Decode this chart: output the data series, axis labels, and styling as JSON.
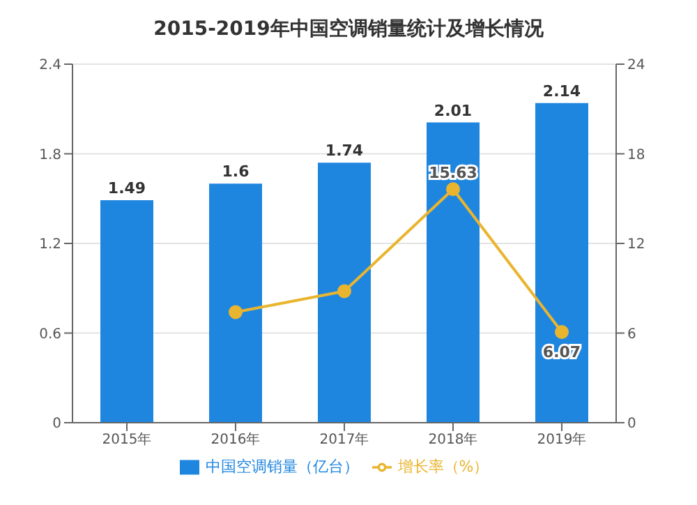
{
  "chart_data": {
    "type": "bar",
    "title": "2015-2019年中国空调销量统计及增长情况",
    "categories": [
      "2015年",
      "2016年",
      "2017年",
      "2018年",
      "2019年"
    ],
    "series": [
      {
        "name": "中国空调销量（亿台）",
        "color": "#1f86e0",
        "values": [
          1.49,
          1.6,
          1.74,
          2.01,
          2.14
        ]
      },
      {
        "name": "增长率（%）",
        "type": "line",
        "axis": "y2",
        "color": "#e9b52f",
        "values": [
          null,
          7.4,
          8.8,
          15.63,
          6.07
        ],
        "value_labels": [
          null,
          null,
          null,
          "15.63",
          "6.07"
        ]
      }
    ],
    "ylim": [
      0,
      2.4
    ],
    "yticks": [
      0,
      0.6,
      1.2,
      1.8,
      2.4
    ],
    "y2lim": [
      0,
      24
    ],
    "y2ticks": [
      0,
      6,
      12,
      18,
      24
    ],
    "data_labels": true,
    "grid": "y",
    "legend": "bottom",
    "marker": "circle"
  }
}
